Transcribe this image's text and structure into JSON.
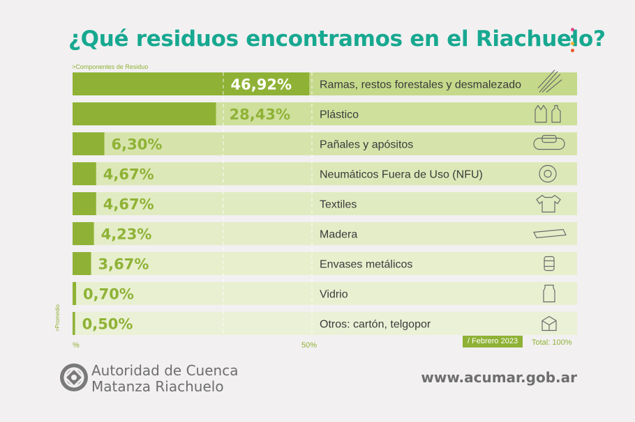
{
  "header": {
    "title": "¿Qué residuos encontramos en el Riachuelo?"
  },
  "colors": {
    "accent": "#8fb236",
    "title": "#17a890",
    "dot1": "#e24a8b",
    "dot2": "#17a890",
    "dot3": "#f2b233",
    "dot4": "#e8582a"
  },
  "chart_data": {
    "type": "bar",
    "orientation": "horizontal",
    "axis_title": ">Componentes de Residuo",
    "side_label": ">Promedio",
    "xlim": [
      0,
      100
    ],
    "x_ticks": [
      "%",
      "50%"
    ],
    "categories": [
      "Ramas, restos forestales y desmalezado",
      "Plástico",
      "Pañales y apósitos",
      "Neumáticos Fuera de Uso (NFU)",
      "Textiles",
      "Madera",
      "Envases metálicos",
      "Vidrio",
      "Otros: cartón, telgopor"
    ],
    "values": [
      46.92,
      28.43,
      6.3,
      4.67,
      4.67,
      4.23,
      3.67,
      0.7,
      0.5
    ],
    "value_labels": [
      "46,92%",
      "28,43%",
      "6,30%",
      "4,67%",
      "4,67%",
      "4,23%",
      "3,67%",
      "0,70%",
      "0,50%"
    ],
    "icons": [
      "branches-icon",
      "plastic-bag-bottle-icon",
      "diaper-bandage-icon",
      "tire-icon",
      "tshirt-icon",
      "wood-plank-icon",
      "tin-can-icon",
      "glass-jar-icon",
      "cardboard-box-icon"
    ]
  },
  "footer": {
    "date": "/ Febrero 2023",
    "total": "Total: 100%",
    "org_line1": "Autoridad de Cuenca",
    "org_line2": "Matanza Riachuelo",
    "url": "www.acumar.gob.ar"
  }
}
